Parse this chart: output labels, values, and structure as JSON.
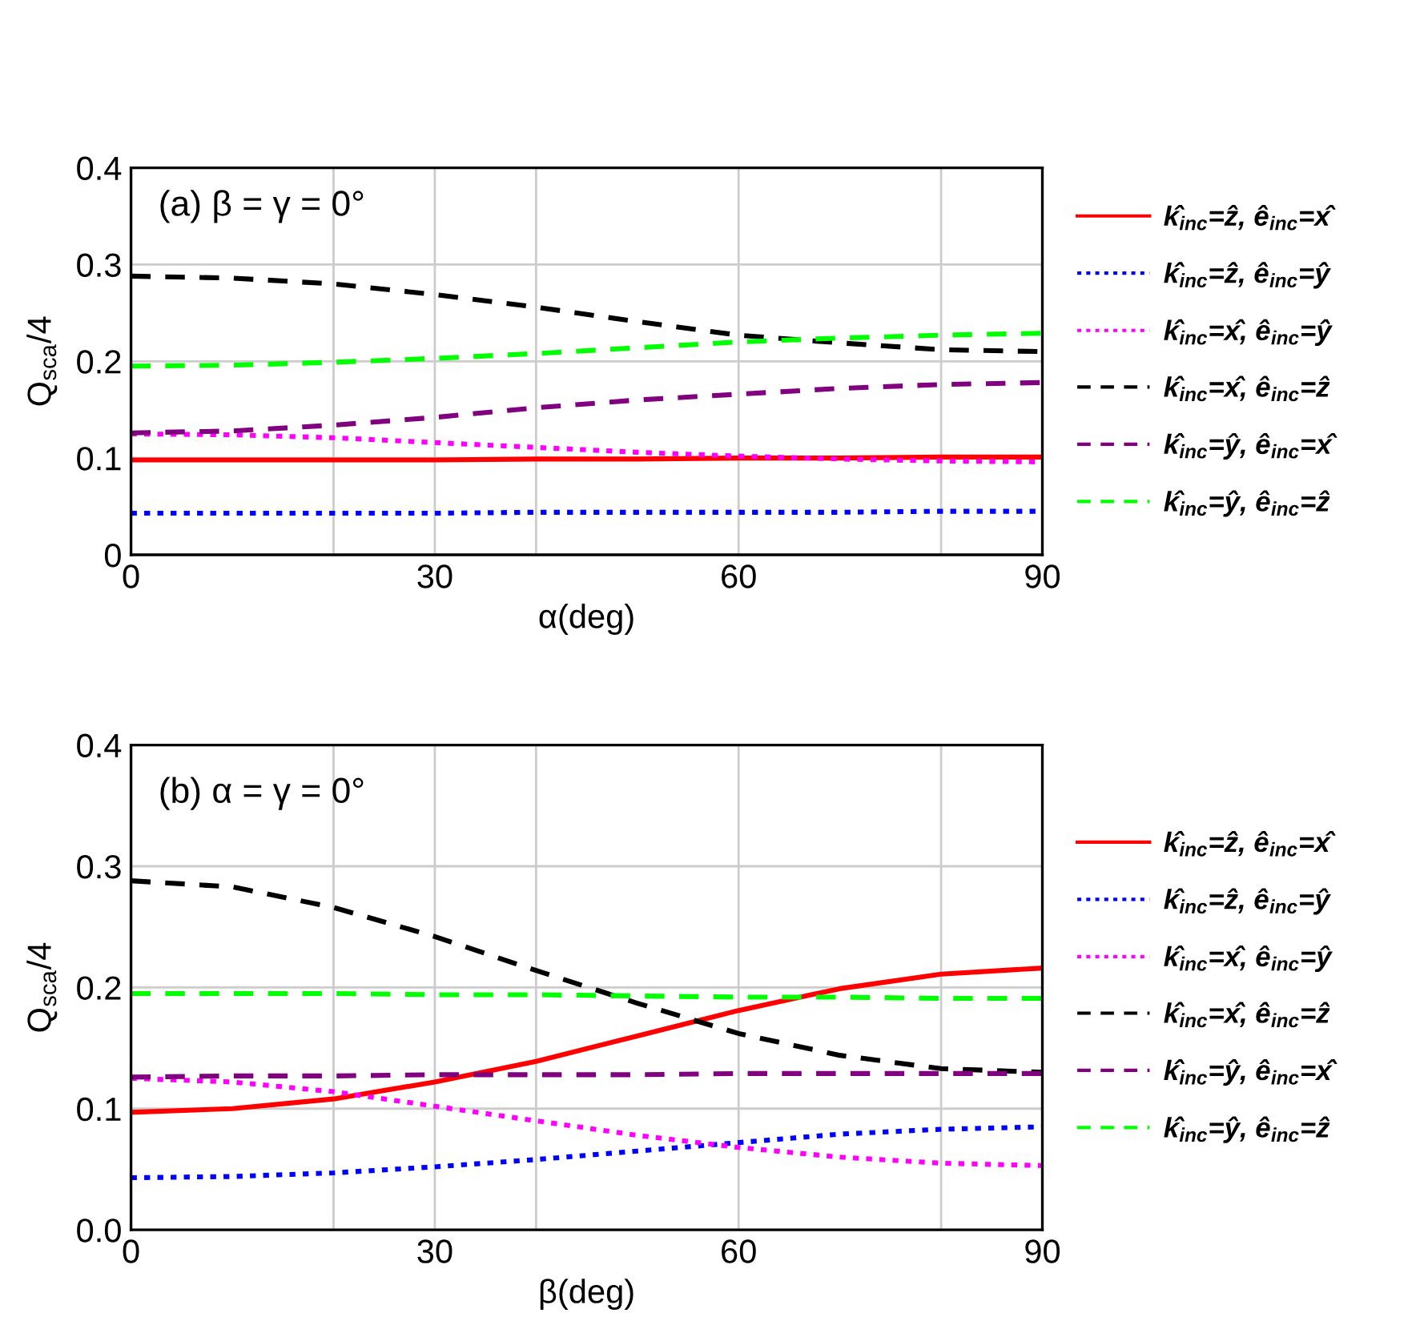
{
  "chart_data": [
    {
      "type": "line",
      "xlabel": "α(deg)",
      "ylabel": "Q$_{sca}$/4",
      "annotations": [
        "(a) β = γ = 0°"
      ],
      "x": [
        0,
        10,
        20,
        30,
        40,
        50,
        60,
        70,
        80,
        90
      ],
      "xlim": [
        0,
        90
      ],
      "xticks": [
        0,
        {
          "value": 20,
          "label": null
        },
        30,
        {
          "value": 40,
          "label": null
        },
        60,
        {
          "value": 80,
          "label": null
        },
        90
      ],
      "ylim": [
        0,
        0.4
      ],
      "yticks": [
        0,
        0.1,
        0.2,
        0.3,
        0.4
      ],
      "grid": true,
      "legend": "right",
      "marker": "none",
      "series": [
        {
          "name": "k̂$_{inc}$=ẑ, ê$_{inc}$=x̂",
          "color": "#ff0000",
          "line_style": "solid",
          "values": [
            0.098,
            0.098,
            0.098,
            0.098,
            0.099,
            0.099,
            0.1,
            0.1,
            0.101,
            0.101
          ]
        },
        {
          "name": "k̂$_{inc}$=ẑ, ê$_{inc}$=ŷ",
          "color": "#0000ff",
          "line_style": "dotted",
          "values": [
            0.043,
            0.043,
            0.043,
            0.043,
            0.044,
            0.044,
            0.044,
            0.044,
            0.045,
            0.045
          ]
        },
        {
          "name": "k̂$_{inc}$=x̂, ê$_{inc}$=ŷ",
          "color": "#ff00ff",
          "line_style": "dotted",
          "values": [
            0.125,
            0.124,
            0.121,
            0.116,
            0.111,
            0.106,
            0.102,
            0.099,
            0.097,
            0.096
          ]
        },
        {
          "name": "k̂$_{inc}$=x̂, ê$_{inc}$=ẑ",
          "color": "#000000",
          "line_style": "dashed",
          "values": [
            0.288,
            0.286,
            0.28,
            0.269,
            0.256,
            0.241,
            0.227,
            0.219,
            0.212,
            0.21
          ]
        },
        {
          "name": "k̂$_{inc}$=ŷ, ê$_{inc}$=x̂",
          "color": "#800080",
          "line_style": "dashed",
          "values": [
            0.126,
            0.128,
            0.134,
            0.142,
            0.152,
            0.16,
            0.166,
            0.172,
            0.176,
            0.178
          ]
        },
        {
          "name": "k̂$_{inc}$=ŷ, ê$_{inc}$=ẑ",
          "color": "#00ff00",
          "line_style": "dashed",
          "values": [
            0.195,
            0.196,
            0.199,
            0.203,
            0.208,
            0.214,
            0.22,
            0.224,
            0.227,
            0.229
          ]
        }
      ]
    },
    {
      "type": "line",
      "xlabel": "β(deg)",
      "ylabel": "Q$_{sca}$/4",
      "annotations": [
        "(b) α = γ = 0°"
      ],
      "x": [
        0,
        10,
        20,
        30,
        40,
        50,
        60,
        70,
        80,
        90
      ],
      "xlim": [
        0,
        90
      ],
      "xticks": [
        0,
        {
          "value": 20,
          "label": null
        },
        30,
        {
          "value": 40,
          "label": null
        },
        60,
        {
          "value": 80,
          "label": null
        },
        90
      ],
      "ylim": [
        0,
        0.4
      ],
      "yticks": [
        {
          "value": 0,
          "label": "0.0"
        },
        0.1,
        0.2,
        0.3,
        0.4
      ],
      "grid": true,
      "legend": "right",
      "marker": "none",
      "series": [
        {
          "name": "k̂$_{inc}$=ẑ, ê$_{inc}$=x̂",
          "color": "#ff0000",
          "line_style": "solid",
          "values": [
            0.097,
            0.1,
            0.108,
            0.122,
            0.139,
            0.16,
            0.181,
            0.199,
            0.211,
            0.216
          ]
        },
        {
          "name": "k̂$_{inc}$=ẑ, ê$_{inc}$=ŷ",
          "color": "#0000ff",
          "line_style": "dotted",
          "values": [
            0.043,
            0.044,
            0.047,
            0.052,
            0.058,
            0.065,
            0.072,
            0.079,
            0.083,
            0.085
          ]
        },
        {
          "name": "k̂$_{inc}$=x̂, ê$_{inc}$=ŷ",
          "color": "#ff00ff",
          "line_style": "dotted",
          "values": [
            0.125,
            0.122,
            0.114,
            0.102,
            0.09,
            0.078,
            0.068,
            0.06,
            0.055,
            0.053
          ]
        },
        {
          "name": "k̂$_{inc}$=x̂, ê$_{inc}$=ẑ",
          "color": "#000000",
          "line_style": "dashed",
          "values": [
            0.288,
            0.283,
            0.266,
            0.242,
            0.214,
            0.187,
            0.162,
            0.144,
            0.133,
            0.13
          ]
        },
        {
          "name": "k̂$_{inc}$=ŷ, ê$_{inc}$=x̂",
          "color": "#800080",
          "line_style": "dashed",
          "values": [
            0.126,
            0.127,
            0.127,
            0.128,
            0.128,
            0.128,
            0.129,
            0.129,
            0.129,
            0.129
          ]
        },
        {
          "name": "k̂$_{inc}$=ŷ, ê$_{inc}$=ẑ",
          "color": "#00ff00",
          "line_style": "dashed",
          "values": [
            0.195,
            0.195,
            0.195,
            0.194,
            0.194,
            0.193,
            0.192,
            0.192,
            0.191,
            0.191
          ]
        }
      ]
    }
  ]
}
